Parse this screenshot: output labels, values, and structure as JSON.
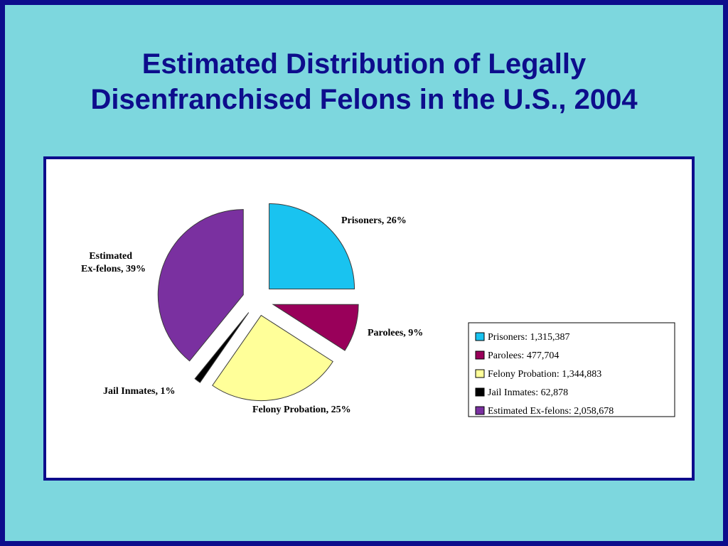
{
  "slide": {
    "title_line1": "Estimated Distribution of Legally",
    "title_line2": "Disenfranchised Felons in the U.S., 2004"
  },
  "colors": {
    "background": "#7dd7de",
    "accent": "#0d0d8c"
  },
  "chart_data": {
    "type": "pie",
    "title": "",
    "labels": [
      "Prisoners",
      "Parolees",
      "Felony Probation",
      "Jail Inmates",
      "Estimated Ex-felons"
    ],
    "values": [
      1315387,
      477704,
      1344883,
      62878,
      2058678
    ],
    "percents": [
      26,
      9,
      25,
      1,
      39
    ],
    "colors": [
      "#19c3f0",
      "#99005a",
      "#ffff99",
      "#000000",
      "#7a30a0"
    ],
    "slice_labels": [
      "Prisoners, 26%",
      "Parolees, 9%",
      "Felony Probation, 25%",
      "Jail Inmates, 1%",
      [
        "Estimated",
        "Ex-felons, 39%"
      ]
    ],
    "legend_entries": [
      "Prisoners: 1,315,387",
      "Parolees: 477,704",
      "Felony Probation: 1,344,883",
      "Jail Inmates: 62,878",
      "Estimated Ex-felons: 2,058,678"
    ],
    "legend_position": "right",
    "exploded": true
  }
}
